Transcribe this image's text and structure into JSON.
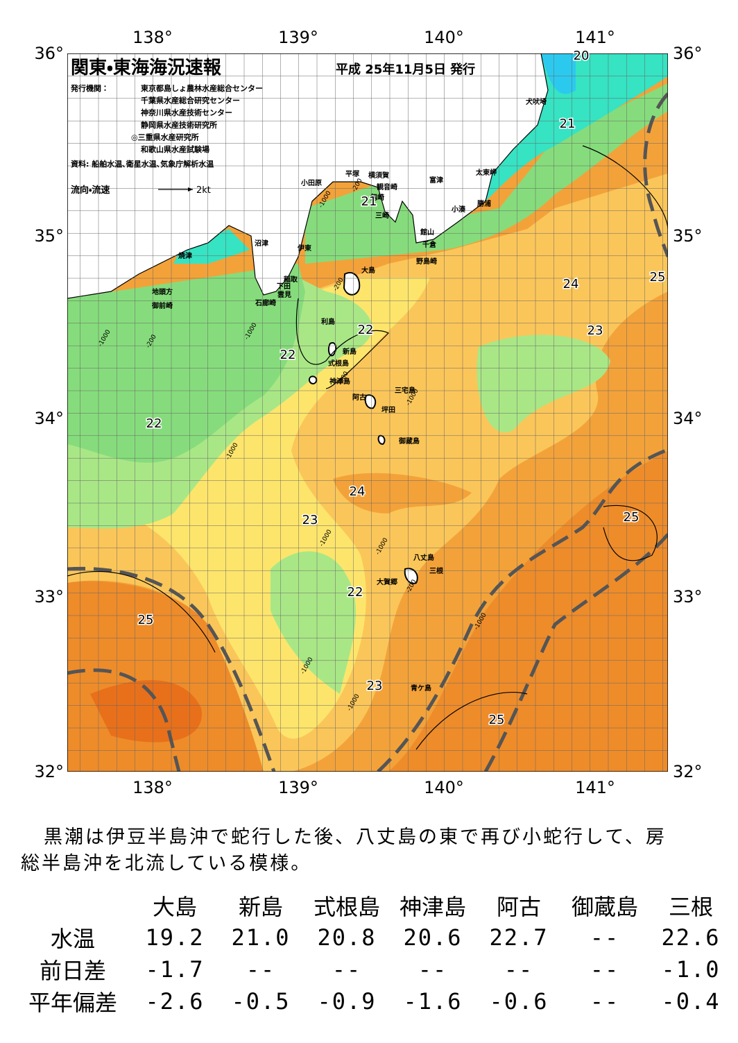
{
  "map": {
    "title": "関東・東海海況速報",
    "issue_date": "平成 25年11月5日 発行",
    "issuer_label": "発行機関：",
    "issuers": [
      "東京都島しょ農林水産総合センター",
      "千葉県水産総合研究センター",
      "神奈川県水産技術センター",
      "静岡県水産技術研究所",
      "◎三重県水産研究所",
      "和歌山県水産試験場"
    ],
    "source": "資料: 船舶水温､衛星水温､気象庁解析水温",
    "legend": {
      "label": "流向・流速",
      "speed": "2kt"
    },
    "lon_labels": [
      "138°",
      "139°",
      "140°",
      "141°"
    ],
    "lat_labels": [
      "36°",
      "35°",
      "34°",
      "33°",
      "32°"
    ],
    "places": [
      "犬吠埼",
      "太東岬",
      "勝浦",
      "小湊",
      "富津",
      "観音崎",
      "横須賀",
      "平塚",
      "小田原",
      "剱崎",
      "三崎",
      "館山",
      "千倉",
      "野島崎",
      "沼津",
      "伊東",
      "焼津",
      "稲取",
      "下田",
      "雲見",
      "石廊崎",
      "地頭方",
      "御前崎",
      "大島",
      "利島",
      "新島",
      "式根島",
      "神津島",
      "三宅島",
      "阿古",
      "坪田",
      "御蔵島",
      "八丈島",
      "三根",
      "大賀郷",
      "青ケ島"
    ],
    "isotherm_labels": [
      "20",
      "21",
      "21",
      "22",
      "22",
      "22",
      "22",
      "23",
      "23",
      "23",
      "24",
      "24",
      "25",
      "25",
      "25",
      "25"
    ],
    "depth_labels": [
      "-200",
      "-1000",
      "-200",
      "-1000",
      "-200",
      "-1000",
      "-200",
      "-1000",
      "-1000",
      "-1000",
      "-1000",
      "-1000",
      "-200",
      "-1000",
      "-1000"
    ]
  },
  "summary": [
    "黒潮は伊豆半島沖で蛇行した後、八丈島の東で再び小蛇行して、房",
    "総半島沖を北流している模様。"
  ],
  "table": {
    "header": [
      "大島",
      "新島",
      "式根島",
      "神津島",
      "阿古",
      "御蔵島",
      "三根"
    ],
    "rows": [
      [
        "水温",
        "19.2",
        "21.0",
        "20.8",
        "20.6",
        "22.7",
        "--",
        "22.6"
      ],
      [
        "前日差",
        "-1.7",
        "--",
        "--",
        "--",
        "--",
        "--",
        "-1.0"
      ],
      [
        "平年偏差",
        "-2.6",
        "-0.5",
        "-0.9",
        "-1.6",
        "-0.6",
        "--",
        "-0.4"
      ]
    ]
  }
}
